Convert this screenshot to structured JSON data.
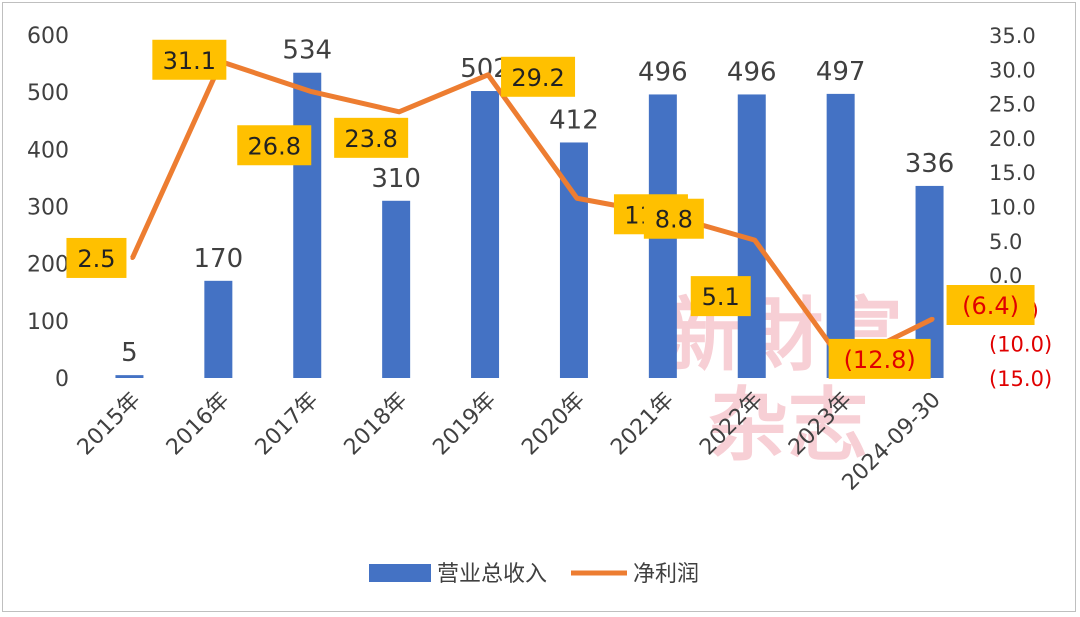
{
  "chart_data": {
    "type": "bar+line",
    "categories": [
      "2015年",
      "2016年",
      "2017年",
      "2018年",
      "2019年",
      "2020年",
      "2021年",
      "2022年",
      "2023年",
      "2024-09-30"
    ],
    "series": [
      {
        "name": "营业总收入",
        "type": "bar",
        "axis": "left",
        "color": "#4472c4",
        "values": [
          5,
          170,
          534,
          310,
          502,
          412,
          496,
          496,
          497,
          336
        ],
        "labels": [
          "5",
          "170",
          "534",
          "310",
          "502",
          "412",
          "496",
          "496",
          "497",
          "336"
        ]
      },
      {
        "name": "净利润",
        "type": "line",
        "axis": "right",
        "color": "#ed7d31",
        "values": [
          2.5,
          31.1,
          26.8,
          23.8,
          29.2,
          11.2,
          8.8,
          5.1,
          -12.8,
          -6.4
        ],
        "labels": [
          "2.5",
          "31.1",
          "26.8",
          "23.8",
          "29.2",
          "11.2",
          "8.8",
          "5.1",
          "(12.8)",
          "(6.4)"
        ]
      }
    ],
    "y_left": {
      "min": 0,
      "max": 600,
      "ticks": [
        "0",
        "100",
        "200",
        "300",
        "400",
        "500",
        "600"
      ]
    },
    "y_right": {
      "min": -15,
      "max": 35,
      "ticks": [
        "(15.0)",
        "(10.0)",
        "(5.0)",
        "0.0",
        "5.0",
        "10.0",
        "15.0",
        "20.0",
        "25.0",
        "30.0",
        "35.0"
      ]
    },
    "label_box_color": "#ffc000",
    "negative_color": "#e00000",
    "legend_position": "bottom",
    "watermark": [
      "新財富",
      "杂志"
    ]
  }
}
